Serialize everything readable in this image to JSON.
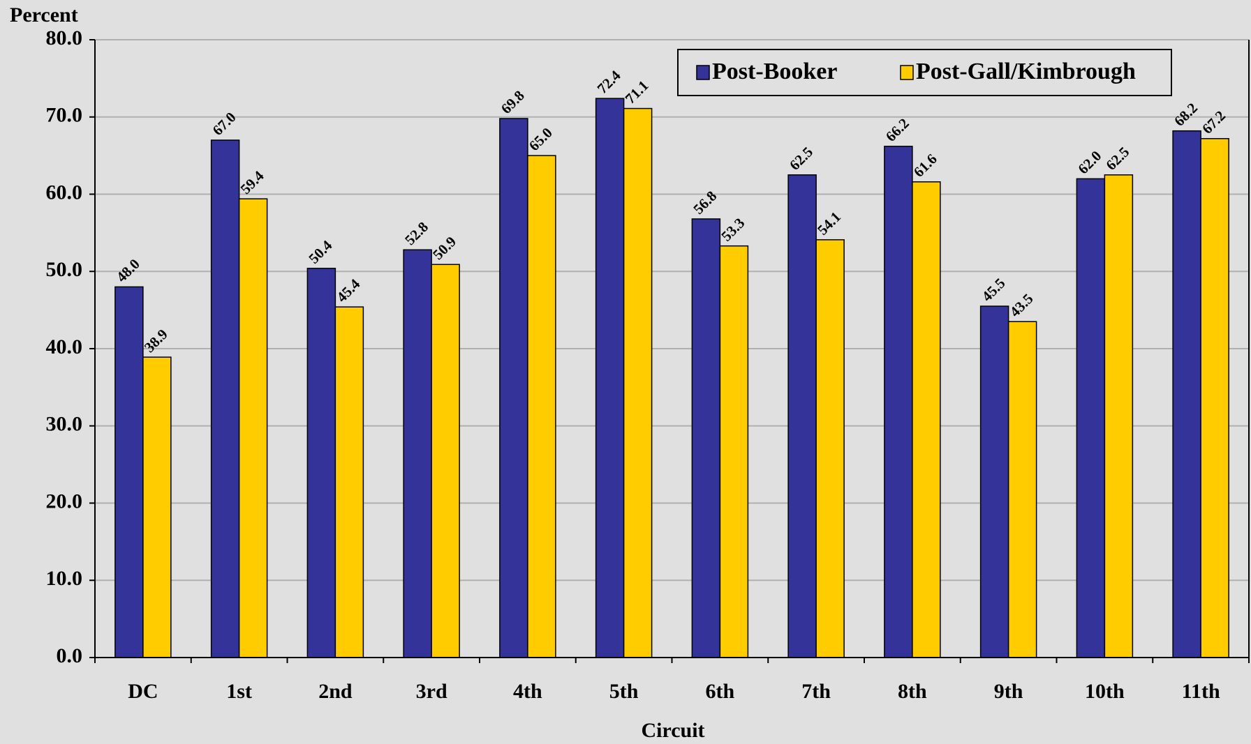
{
  "chart_data": {
    "type": "bar",
    "ylabel": "Percent",
    "xlabel": "Circuit",
    "categories": [
      "DC",
      "1st",
      "2nd",
      "3rd",
      "4th",
      "5th",
      "6th",
      "7th",
      "8th",
      "9th",
      "10th",
      "11th"
    ],
    "series": [
      {
        "name": "Post-Booker",
        "color": "#333399",
        "values": [
          48.0,
          67.0,
          50.4,
          52.8,
          69.8,
          72.4,
          56.8,
          62.5,
          66.2,
          45.5,
          62.0,
          68.2
        ],
        "value_labels": [
          "48.0",
          "67.0",
          "50.4",
          "52.8",
          "69.8",
          "72.4",
          "56.8",
          "62.5",
          "66.2",
          "45.5",
          "62.0",
          "68.2"
        ]
      },
      {
        "name": "Post-Gall/Kimbrough",
        "color": "#ffcc00",
        "values": [
          38.9,
          59.4,
          45.4,
          50.9,
          65.0,
          71.1,
          53.3,
          54.1,
          61.6,
          43.5,
          62.5,
          67.2
        ],
        "value_labels": [
          "38.9",
          "59.4",
          "45.4",
          "50.9",
          "65.0",
          "71.1",
          "53.3",
          "54.1",
          "61.6",
          "43.5",
          "62.5",
          "67.2"
        ]
      }
    ],
    "ylim": [
      0,
      80
    ],
    "yticks": [
      {
        "value": 0,
        "label": "0.0"
      },
      {
        "value": 10,
        "label": "10.0"
      },
      {
        "value": 20,
        "label": "20.0"
      },
      {
        "value": 30,
        "label": "30.0"
      },
      {
        "value": 40,
        "label": "40.0"
      },
      {
        "value": 50,
        "label": "50.0"
      },
      {
        "value": 60,
        "label": "60.0"
      },
      {
        "value": 70,
        "label": "70.0"
      },
      {
        "value": 80,
        "label": "80.0"
      }
    ],
    "grid": true,
    "legend": "top-right"
  }
}
